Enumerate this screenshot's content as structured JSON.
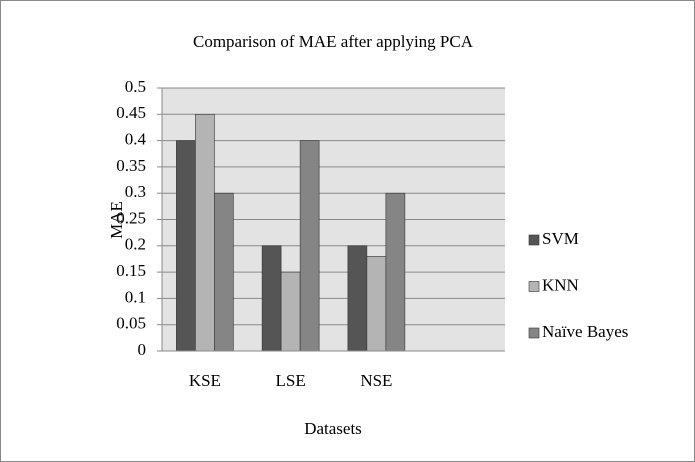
{
  "chart_data": {
    "type": "bar",
    "title": "Comparison of MAE after applying PCA",
    "x_label": "Datasets",
    "y_label": "MAE",
    "categories": [
      "KSE",
      "LSE",
      "NSE",
      null
    ],
    "series": [
      {
        "name": "SVM",
        "color": "#555555",
        "values": [
          0.4,
          0.2,
          0.2,
          null
        ]
      },
      {
        "name": "KNN",
        "color": "#b4b4b4",
        "values": [
          0.45,
          0.15,
          0.18,
          null
        ]
      },
      {
        "name": "Naïve Bayes",
        "color": "#858585",
        "values": [
          0.3,
          0.4,
          0.3,
          null
        ]
      }
    ],
    "ylim": [
      0,
      0.5
    ],
    "yticks": [
      0,
      0.05,
      0.1,
      0.15,
      0.2,
      0.25,
      0.3,
      0.35,
      0.4,
      0.45,
      0.5
    ],
    "grid": true,
    "legend": "right"
  }
}
